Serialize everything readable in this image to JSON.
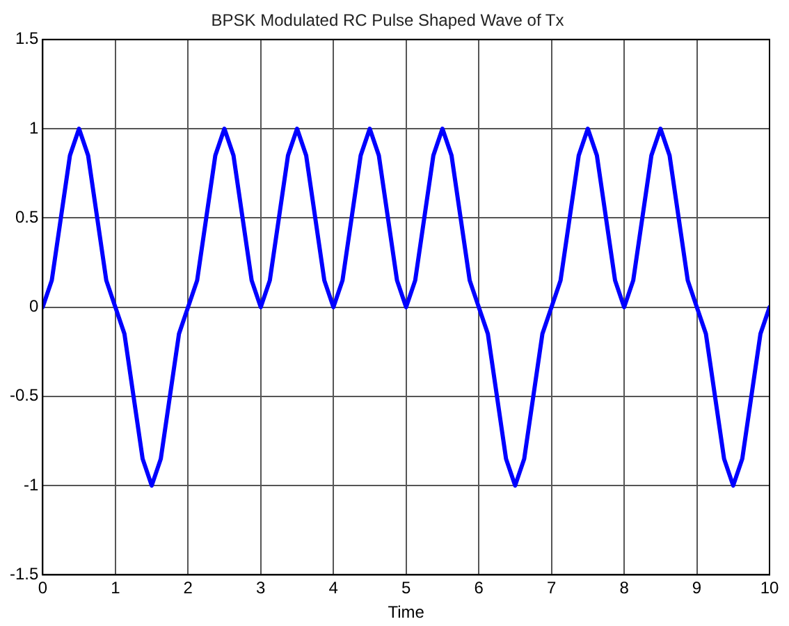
{
  "chart_data": {
    "type": "line",
    "title": "BPSK Modulated RC Pulse Shaped Wave of Tx",
    "xlabel": "Time",
    "x": [
      0,
      0.125,
      0.25,
      0.375,
      0.5,
      0.625,
      0.75,
      0.875,
      1,
      1.125,
      1.25,
      1.375,
      1.5,
      1.625,
      1.75,
      1.875,
      2,
      2.125,
      2.25,
      2.375,
      2.5,
      2.625,
      2.75,
      2.875,
      3,
      3.125,
      3.25,
      3.375,
      3.5,
      3.625,
      3.75,
      3.875,
      4,
      4.125,
      4.25,
      4.375,
      4.5,
      4.625,
      4.75,
      4.875,
      5,
      5.125,
      5.25,
      5.375,
      5.5,
      5.625,
      5.75,
      5.875,
      6,
      6.125,
      6.25,
      6.375,
      6.5,
      6.625,
      6.75,
      6.875,
      7,
      7.125,
      7.25,
      7.375,
      7.5,
      7.625,
      7.75,
      7.875,
      8,
      8.125,
      8.25,
      8.375,
      8.5,
      8.625,
      8.75,
      8.875,
      9,
      9.125,
      9.25,
      9.375,
      9.5,
      9.625,
      9.75,
      9.875,
      10
    ],
    "series": [
      {
        "color": "#0000ff",
        "values": [
          0,
          0.15,
          0.5,
          0.85,
          1,
          0.85,
          0.5,
          0.15,
          0,
          -0.15,
          -0.5,
          -0.85,
          -1,
          -0.85,
          -0.5,
          -0.15,
          0,
          0.15,
          0.5,
          0.85,
          1,
          0.85,
          0.5,
          0.15,
          0,
          0.15,
          0.5,
          0.85,
          1,
          0.85,
          0.5,
          0.15,
          0,
          0.15,
          0.5,
          0.85,
          1,
          0.85,
          0.5,
          0.15,
          0,
          0.15,
          0.5,
          0.85,
          1,
          0.85,
          0.5,
          0.15,
          0,
          -0.15,
          -0.5,
          -0.85,
          -1,
          -0.85,
          -0.5,
          -0.15,
          0,
          0.15,
          0.5,
          0.85,
          1,
          0.85,
          0.5,
          0.15,
          0,
          0.15,
          0.5,
          0.85,
          1,
          0.85,
          0.5,
          0.15,
          0,
          -0.15,
          -0.5,
          -0.85,
          -1,
          -0.85,
          -0.5,
          -0.15,
          0
        ]
      }
    ],
    "xlim": [
      0,
      10
    ],
    "xticks": [
      0,
      1,
      2,
      3,
      4,
      5,
      6,
      7,
      8,
      9,
      10
    ],
    "ylim": [
      -1.5,
      1.5
    ],
    "yticks": [
      -1.5,
      -1,
      -0.5,
      0,
      0.5,
      1,
      1.5
    ],
    "grid": true,
    "legend": false,
    "marker": "none",
    "line_style": "solid"
  }
}
